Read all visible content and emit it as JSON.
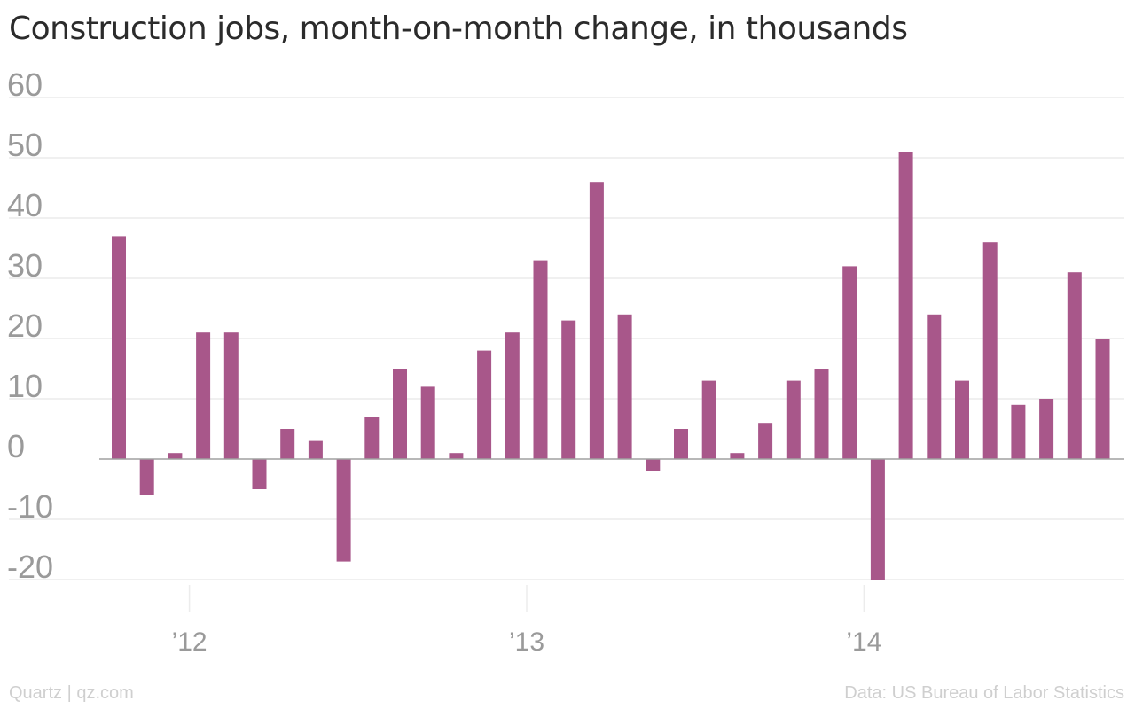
{
  "title": "Construction jobs, month-on-month change, in thousands",
  "footer": {
    "credit": "Quartz | qz.com",
    "source": "Data: US Bureau of Labor Statistics"
  },
  "colors": {
    "bar": "#a8578a",
    "grid": "#ececec",
    "axis": "#a0a0a0",
    "tick_text": "#9a9a9a"
  },
  "chart_data": {
    "type": "bar",
    "title": "Construction jobs, month-on-month change, in thousands",
    "xlabel": "",
    "ylabel": "",
    "ylim": [
      -20,
      60
    ],
    "yticks": [
      60,
      50,
      40,
      30,
      20,
      10,
      0,
      -10,
      -20
    ],
    "ytick_labels": [
      "60",
      "50",
      "40",
      "30",
      "20",
      "10",
      "0",
      "-10",
      "-20"
    ],
    "xtick_labels": [
      {
        "label": "’12",
        "at": "2012-01"
      },
      {
        "label": "’13",
        "at": "2013-01"
      },
      {
        "label": "’14",
        "at": "2014-01"
      }
    ],
    "grid": true,
    "categories": [
      "2011-10",
      "2011-11",
      "2011-12",
      "2012-01",
      "2012-02",
      "2012-03",
      "2012-04",
      "2012-05",
      "2012-06",
      "2012-07",
      "2012-08",
      "2012-09",
      "2012-10",
      "2012-11",
      "2012-12",
      "2013-01",
      "2013-02",
      "2013-03",
      "2013-04",
      "2013-05",
      "2013-06",
      "2013-07",
      "2013-08",
      "2013-09",
      "2013-10",
      "2013-11",
      "2013-12",
      "2014-01",
      "2014-02",
      "2014-03",
      "2014-04",
      "2014-05",
      "2014-06",
      "2014-07",
      "2014-08",
      "2014-09"
    ],
    "values": [
      37,
      -6,
      1,
      21,
      21,
      -5,
      5,
      3,
      -17,
      7,
      15,
      12,
      1,
      18,
      21,
      33,
      23,
      46,
      24,
      -2,
      5,
      13,
      1,
      6,
      13,
      15,
      32,
      -20,
      51,
      24,
      13,
      36,
      9,
      10,
      31,
      20
    ]
  }
}
